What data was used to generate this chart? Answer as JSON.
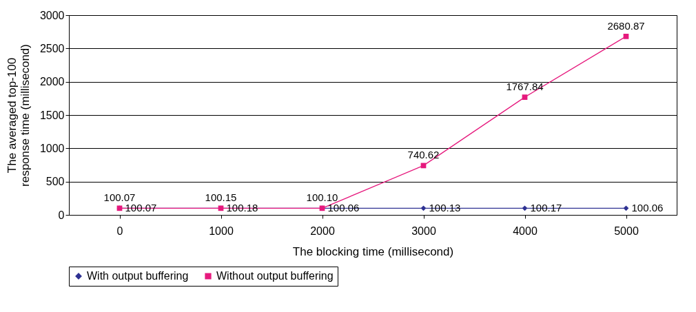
{
  "chart_data": {
    "type": "line",
    "xlabel": "The blocking time (millisecond)",
    "ylabel": "The averaged top-100 response time (millisecond)",
    "categories": [
      "0",
      "1000",
      "2000",
      "3000",
      "4000",
      "5000"
    ],
    "series": [
      {
        "name": "With output buffering",
        "color": "#2e3192",
        "marker": "diamond",
        "values": [
          100.07,
          100.18,
          100.06,
          100.13,
          100.17,
          100.06
        ],
        "value_labels": [
          "100.07",
          "100.18",
          "100.06",
          "100.13",
          "100.17",
          "100.06"
        ]
      },
      {
        "name": "Without output buffering",
        "color": "#e6197d",
        "marker": "square",
        "values": [
          100.07,
          100.15,
          100.1,
          740.62,
          1767.84,
          2680.87
        ],
        "value_labels": [
          "100.07",
          "100.15",
          "100.10",
          "740.62",
          "1767.84",
          "2680.87"
        ]
      }
    ],
    "ylim": [
      0,
      3000
    ],
    "yticks": [
      0,
      500,
      1000,
      1500,
      2000,
      2500,
      3000
    ],
    "grid": "y",
    "legend": "bottom"
  }
}
